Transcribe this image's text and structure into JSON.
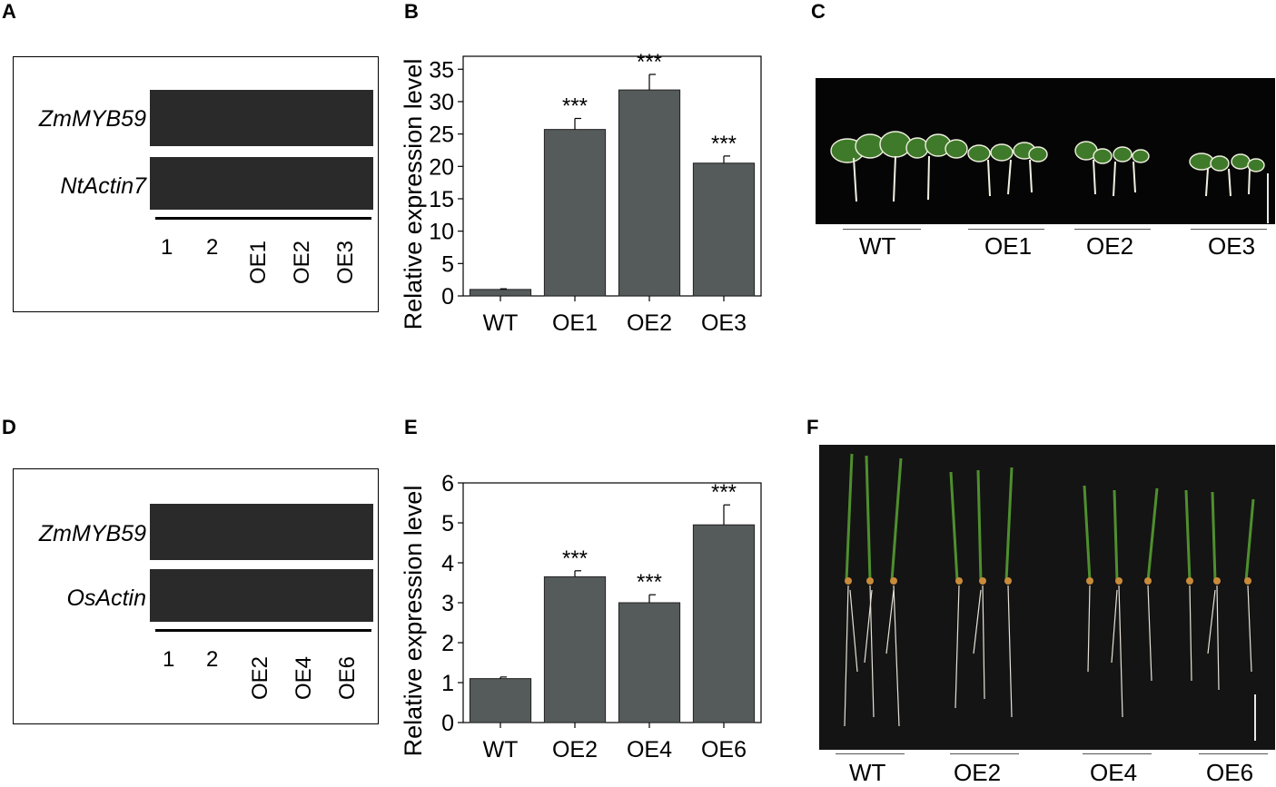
{
  "panels": {
    "A": {
      "letter": "A",
      "genes": [
        "ZmMYB59",
        "NtActin7"
      ],
      "lanes": [
        "1",
        "2",
        "OE1",
        "OE2",
        "OE3"
      ]
    },
    "B": {
      "letter": "B"
    },
    "C": {
      "letter": "C",
      "groups": [
        "WT",
        "OE1",
        "OE2",
        "OE3"
      ]
    },
    "D": {
      "letter": "D",
      "genes": [
        "ZmMYB59",
        "OsActin"
      ],
      "lanes": [
        "1",
        "2",
        "OE2",
        "OE4",
        "OE6"
      ]
    },
    "E": {
      "letter": "E"
    },
    "F": {
      "letter": "F",
      "groups": [
        "WT",
        "OE2",
        "OE4",
        "OE6"
      ]
    }
  },
  "chart_data": [
    {
      "type": "bar",
      "panel": "B",
      "categories": [
        "WT",
        "OE1",
        "OE2",
        "OE3"
      ],
      "values": [
        1,
        25.7,
        31.8,
        20.5
      ],
      "errors": [
        0.1,
        1.7,
        2.4,
        1.1
      ],
      "significance": [
        "",
        "***",
        "***",
        "***"
      ],
      "ylabel": "Relative expression level",
      "xlabel": "",
      "ylim": [
        0,
        37
      ],
      "yticks": [
        0,
        5,
        10,
        15,
        20,
        25,
        30,
        35
      ],
      "bar_color": "#555a5a"
    },
    {
      "type": "bar",
      "panel": "E",
      "categories": [
        "WT",
        "OE2",
        "OE4",
        "OE6"
      ],
      "values": [
        1.1,
        3.65,
        3.0,
        4.95
      ],
      "errors": [
        0.04,
        0.15,
        0.2,
        0.5
      ],
      "significance": [
        "",
        "***",
        "***",
        "***"
      ],
      "ylabel": "Relative expression level",
      "xlabel": "",
      "ylim": [
        0,
        6
      ],
      "yticks": [
        0,
        1,
        2,
        3,
        4,
        5,
        6
      ],
      "bar_color": "#555a5a"
    }
  ]
}
